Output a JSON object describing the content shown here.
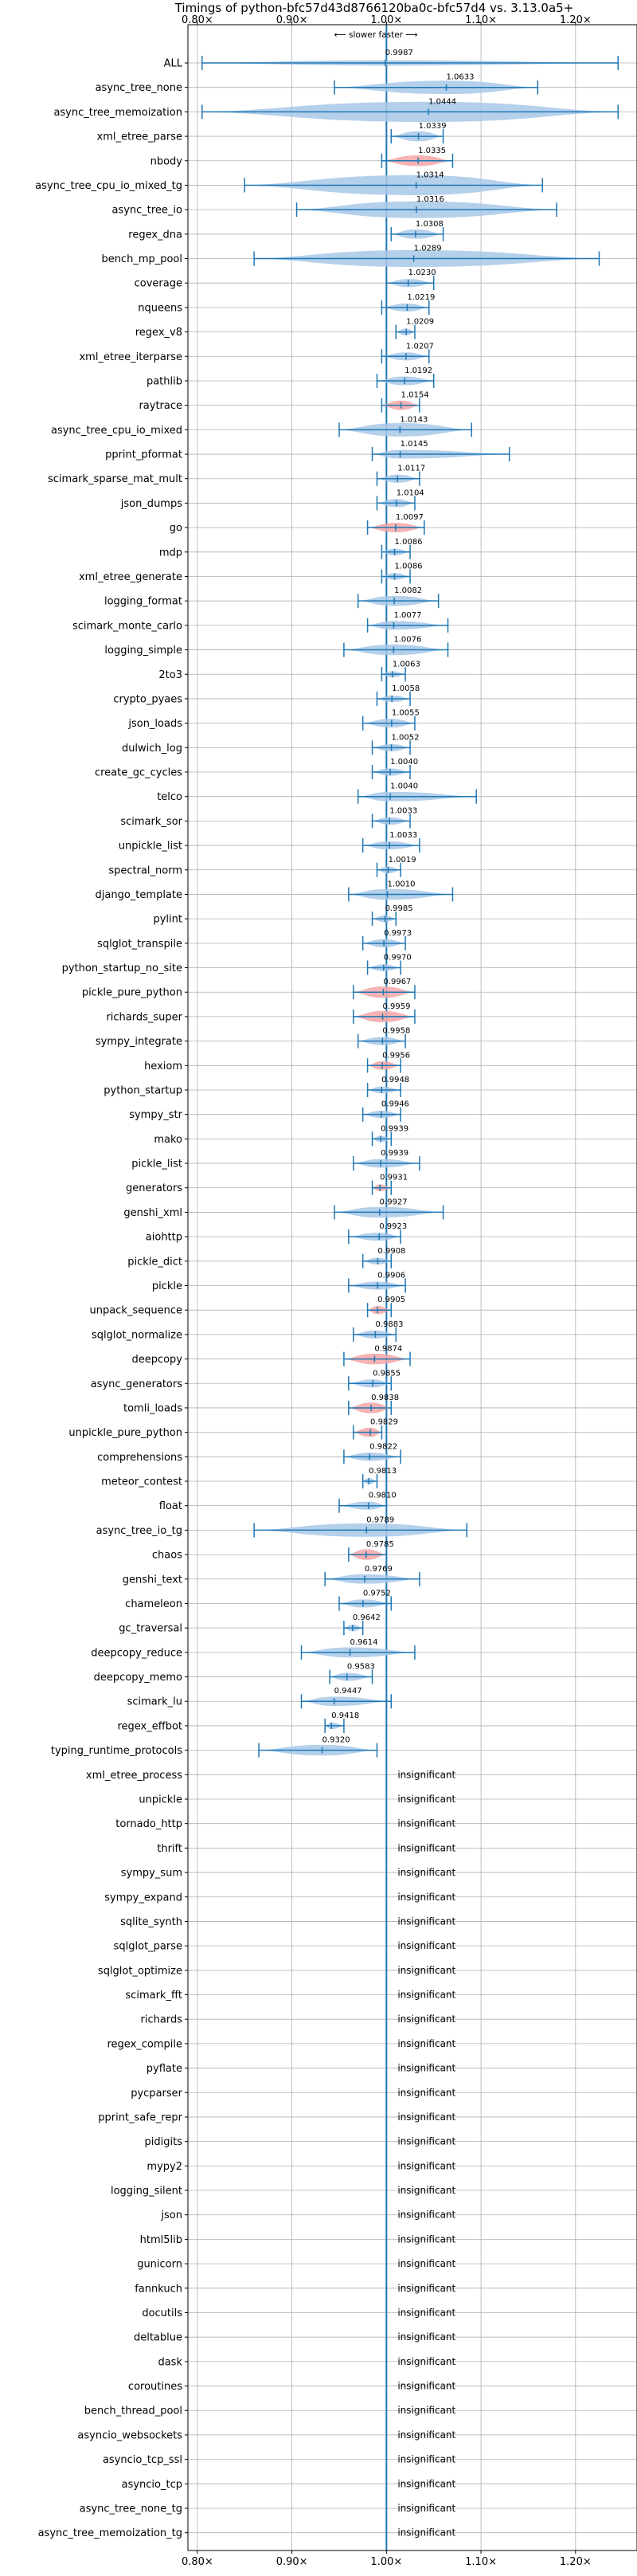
{
  "chart_data": {
    "type": "violin",
    "title": "Timings of python-bfc57d43d8766120ba0c-bfc57d4 vs. 3.13.0a5+",
    "direction_label": "⟵ slower    faster ⟶",
    "x_ticks": [
      0.8,
      0.9,
      1.0,
      1.1,
      1.2
    ],
    "x_tick_labels": [
      "0.80×",
      "0.90×",
      "1.00×",
      "1.10×",
      "1.20×"
    ],
    "xlim": [
      0.79,
      1.265
    ],
    "reference_line": 1.0,
    "insignificant_label": "insignificant",
    "colors": {
      "normal": "#a8c8e8",
      "highlight": "#f4a6a6",
      "whisker": "#1f77b4",
      "grid": "#b0b0b0"
    },
    "benchmarks": [
      {
        "name": "ALL",
        "value": 0.9987,
        "label": "0.9987",
        "min": 0.805,
        "max": 1.245,
        "width": 0.8,
        "hl": false
      },
      {
        "name": "async_tree_none",
        "value": 1.0633,
        "label": "1.0633",
        "min": 0.945,
        "max": 1.16,
        "width": 2.0,
        "hl": false
      },
      {
        "name": "async_tree_memoization",
        "value": 1.0444,
        "label": "1.0444",
        "min": 0.805,
        "max": 1.245,
        "width": 3.0,
        "hl": false
      },
      {
        "name": "xml_etree_parse",
        "value": 1.0339,
        "label": "1.0339",
        "min": 1.005,
        "max": 1.06,
        "width": 1.5,
        "hl": false
      },
      {
        "name": "nbody",
        "value": 1.0335,
        "label": "1.0335",
        "min": 0.995,
        "max": 1.07,
        "width": 1.6,
        "hl": true
      },
      {
        "name": "async_tree_cpu_io_mixed_tg",
        "value": 1.0314,
        "label": "1.0314",
        "min": 0.85,
        "max": 1.165,
        "width": 3.0,
        "hl": false
      },
      {
        "name": "async_tree_io",
        "value": 1.0316,
        "label": "1.0316",
        "min": 0.905,
        "max": 1.18,
        "width": 2.5,
        "hl": false
      },
      {
        "name": "regex_dna",
        "value": 1.0308,
        "label": "1.0308",
        "min": 1.005,
        "max": 1.06,
        "width": 1.4,
        "hl": false
      },
      {
        "name": "bench_mp_pool",
        "value": 1.0289,
        "label": "1.0289",
        "min": 0.86,
        "max": 1.225,
        "width": 2.5,
        "hl": false
      },
      {
        "name": "coverage",
        "value": 1.023,
        "label": "1.0230",
        "min": 1.0,
        "max": 1.05,
        "width": 1.2,
        "hl": false
      },
      {
        "name": "nqueens",
        "value": 1.0219,
        "label": "1.0219",
        "min": 0.995,
        "max": 1.045,
        "width": 1.2,
        "hl": false
      },
      {
        "name": "regex_v8",
        "value": 1.0209,
        "label": "1.0209",
        "min": 1.01,
        "max": 1.03,
        "width": 1.0,
        "hl": false
      },
      {
        "name": "xml_etree_iterparse",
        "value": 1.0207,
        "label": "1.0207",
        "min": 0.995,
        "max": 1.045,
        "width": 1.2,
        "hl": false
      },
      {
        "name": "pathlib",
        "value": 1.0192,
        "label": "1.0192",
        "min": 0.99,
        "max": 1.05,
        "width": 1.3,
        "hl": false
      },
      {
        "name": "raytrace",
        "value": 1.0154,
        "label": "1.0154",
        "min": 0.995,
        "max": 1.035,
        "width": 1.4,
        "hl": true
      },
      {
        "name": "async_tree_cpu_io_mixed",
        "value": 1.0143,
        "label": "1.0143",
        "min": 0.95,
        "max": 1.09,
        "width": 2.0,
        "hl": false
      },
      {
        "name": "pprint_pformat",
        "value": 1.0145,
        "label": "1.0145",
        "min": 0.985,
        "max": 1.13,
        "width": 1.3,
        "hl": false
      },
      {
        "name": "scimark_sparse_mat_mult",
        "value": 1.0117,
        "label": "1.0117",
        "min": 0.99,
        "max": 1.035,
        "width": 1.2,
        "hl": false
      },
      {
        "name": "json_dumps",
        "value": 1.0104,
        "label": "1.0104",
        "min": 0.99,
        "max": 1.03,
        "width": 1.2,
        "hl": false
      },
      {
        "name": "go",
        "value": 1.0097,
        "label": "1.0097",
        "min": 0.98,
        "max": 1.04,
        "width": 1.4,
        "hl": true
      },
      {
        "name": "mdp",
        "value": 1.0086,
        "label": "1.0086",
        "min": 0.995,
        "max": 1.025,
        "width": 1.0,
        "hl": false
      },
      {
        "name": "xml_etree_generate",
        "value": 1.0086,
        "label": "1.0086",
        "min": 0.995,
        "max": 1.025,
        "width": 1.0,
        "hl": false
      },
      {
        "name": "logging_format",
        "value": 1.0082,
        "label": "1.0082",
        "min": 0.97,
        "max": 1.055,
        "width": 1.5,
        "hl": false
      },
      {
        "name": "scimark_monte_carlo",
        "value": 1.0077,
        "label": "1.0077",
        "min": 0.98,
        "max": 1.065,
        "width": 1.3,
        "hl": false
      },
      {
        "name": "logging_simple",
        "value": 1.0076,
        "label": "1.0076",
        "min": 0.955,
        "max": 1.065,
        "width": 1.6,
        "hl": false
      },
      {
        "name": "2to3",
        "value": 1.0063,
        "label": "1.0063",
        "min": 0.995,
        "max": 1.02,
        "width": 0.9,
        "hl": false
      },
      {
        "name": "crypto_pyaes",
        "value": 1.0058,
        "label": "1.0058",
        "min": 0.99,
        "max": 1.025,
        "width": 1.0,
        "hl": false
      },
      {
        "name": "json_loads",
        "value": 1.0055,
        "label": "1.0055",
        "min": 0.975,
        "max": 1.03,
        "width": 1.3,
        "hl": false
      },
      {
        "name": "dulwich_log",
        "value": 1.0052,
        "label": "1.0052",
        "min": 0.985,
        "max": 1.025,
        "width": 1.1,
        "hl": false
      },
      {
        "name": "create_gc_cycles",
        "value": 1.004,
        "label": "1.0040",
        "min": 0.985,
        "max": 1.025,
        "width": 1.1,
        "hl": false
      },
      {
        "name": "telco",
        "value": 1.004,
        "label": "1.0040",
        "min": 0.97,
        "max": 1.095,
        "width": 1.4,
        "hl": false
      },
      {
        "name": "scimark_sor",
        "value": 1.0033,
        "label": "1.0033",
        "min": 0.985,
        "max": 1.025,
        "width": 1.1,
        "hl": false
      },
      {
        "name": "unpickle_list",
        "value": 1.0033,
        "label": "1.0033",
        "min": 0.975,
        "max": 1.035,
        "width": 1.2,
        "hl": false
      },
      {
        "name": "spectral_norm",
        "value": 1.0019,
        "label": "1.0019",
        "min": 0.99,
        "max": 1.015,
        "width": 1.0,
        "hl": false
      },
      {
        "name": "django_template",
        "value": 1.001,
        "label": "1.0010",
        "min": 0.96,
        "max": 1.07,
        "width": 1.6,
        "hl": false
      },
      {
        "name": "pylint",
        "value": 0.9985,
        "label": "0.9985",
        "min": 0.985,
        "max": 1.01,
        "width": 1.0,
        "hl": false
      },
      {
        "name": "sqlglot_transpile",
        "value": 0.9973,
        "label": "0.9973",
        "min": 0.975,
        "max": 1.02,
        "width": 1.2,
        "hl": false
      },
      {
        "name": "python_startup_no_site",
        "value": 0.997,
        "label": "0.9970",
        "min": 0.98,
        "max": 1.015,
        "width": 1.0,
        "hl": false
      },
      {
        "name": "pickle_pure_python",
        "value": 0.9967,
        "label": "0.9967",
        "min": 0.965,
        "max": 1.03,
        "width": 1.7,
        "hl": true
      },
      {
        "name": "richards_super",
        "value": 0.9959,
        "label": "0.9959",
        "min": 0.965,
        "max": 1.03,
        "width": 1.7,
        "hl": true
      },
      {
        "name": "sympy_integrate",
        "value": 0.9958,
        "label": "0.9958",
        "min": 0.97,
        "max": 1.02,
        "width": 1.2,
        "hl": false
      },
      {
        "name": "hexiom",
        "value": 0.9956,
        "label": "0.9956",
        "min": 0.98,
        "max": 1.015,
        "width": 1.3,
        "hl": true
      },
      {
        "name": "python_startup",
        "value": 0.9948,
        "label": "0.9948",
        "min": 0.98,
        "max": 1.015,
        "width": 1.0,
        "hl": false
      },
      {
        "name": "sympy_str",
        "value": 0.9946,
        "label": "0.9946",
        "min": 0.975,
        "max": 1.015,
        "width": 1.1,
        "hl": false
      },
      {
        "name": "mako",
        "value": 0.9939,
        "label": "0.9939",
        "min": 0.985,
        "max": 1.005,
        "width": 0.9,
        "hl": false
      },
      {
        "name": "pickle_list",
        "value": 0.9939,
        "label": "0.9939",
        "min": 0.965,
        "max": 1.035,
        "width": 1.3,
        "hl": false
      },
      {
        "name": "generators",
        "value": 0.9931,
        "label": "0.9931",
        "min": 0.985,
        "max": 1.005,
        "width": 1.0,
        "hl": true
      },
      {
        "name": "genshi_xml",
        "value": 0.9927,
        "label": "0.9927",
        "min": 0.945,
        "max": 1.06,
        "width": 1.6,
        "hl": false
      },
      {
        "name": "aiohttp",
        "value": 0.9923,
        "label": "0.9923",
        "min": 0.96,
        "max": 1.015,
        "width": 1.2,
        "hl": false
      },
      {
        "name": "pickle_dict",
        "value": 0.9908,
        "label": "0.9908",
        "min": 0.975,
        "max": 1.005,
        "width": 1.0,
        "hl": false
      },
      {
        "name": "pickle",
        "value": 0.9906,
        "label": "0.9906",
        "min": 0.96,
        "max": 1.02,
        "width": 1.2,
        "hl": false
      },
      {
        "name": "unpack_sequence",
        "value": 0.9905,
        "label": "0.9905",
        "min": 0.98,
        "max": 1.005,
        "width": 1.2,
        "hl": true
      },
      {
        "name": "sqlglot_normalize",
        "value": 0.9883,
        "label": "0.9883",
        "min": 0.965,
        "max": 1.01,
        "width": 1.2,
        "hl": false
      },
      {
        "name": "deepcopy",
        "value": 0.9874,
        "label": "0.9874",
        "min": 0.955,
        "max": 1.025,
        "width": 1.6,
        "hl": true
      },
      {
        "name": "async_generators",
        "value": 0.9855,
        "label": "0.9855",
        "min": 0.96,
        "max": 1.005,
        "width": 1.2,
        "hl": false
      },
      {
        "name": "tomli_loads",
        "value": 0.9838,
        "label": "0.9838",
        "min": 0.96,
        "max": 1.005,
        "width": 1.6,
        "hl": true
      },
      {
        "name": "unpickle_pure_python",
        "value": 0.9829,
        "label": "0.9829",
        "min": 0.965,
        "max": 0.995,
        "width": 1.4,
        "hl": true
      },
      {
        "name": "comprehensions",
        "value": 0.9822,
        "label": "0.9822",
        "min": 0.955,
        "max": 1.015,
        "width": 1.2,
        "hl": false
      },
      {
        "name": "meteor_contest",
        "value": 0.9813,
        "label": "0.9813",
        "min": 0.975,
        "max": 0.99,
        "width": 0.9,
        "hl": false
      },
      {
        "name": "float",
        "value": 0.981,
        "label": "0.9810",
        "min": 0.95,
        "max": 1.0,
        "width": 1.2,
        "hl": false
      },
      {
        "name": "async_tree_io_tg",
        "value": 0.9789,
        "label": "0.9789",
        "min": 0.86,
        "max": 1.085,
        "width": 2.0,
        "hl": false
      },
      {
        "name": "chaos",
        "value": 0.9785,
        "label": "0.9785",
        "min": 0.96,
        "max": 1.0,
        "width": 1.6,
        "hl": true
      },
      {
        "name": "genshi_text",
        "value": 0.9769,
        "label": "0.9769",
        "min": 0.935,
        "max": 1.035,
        "width": 1.4,
        "hl": false
      },
      {
        "name": "chameleon",
        "value": 0.9752,
        "label": "0.9752",
        "min": 0.95,
        "max": 1.005,
        "width": 1.2,
        "hl": false
      },
      {
        "name": "gc_traversal",
        "value": 0.9642,
        "label": "0.9642",
        "min": 0.955,
        "max": 0.975,
        "width": 1.0,
        "hl": false
      },
      {
        "name": "deepcopy_reduce",
        "value": 0.9614,
        "label": "0.9614",
        "min": 0.91,
        "max": 1.03,
        "width": 1.5,
        "hl": false
      },
      {
        "name": "deepcopy_memo",
        "value": 0.9583,
        "label": "0.9583",
        "min": 0.94,
        "max": 0.985,
        "width": 1.2,
        "hl": false
      },
      {
        "name": "scimark_lu",
        "value": 0.9447,
        "label": "0.9447",
        "min": 0.91,
        "max": 1.005,
        "width": 1.4,
        "hl": false
      },
      {
        "name": "regex_effbot",
        "value": 0.9418,
        "label": "0.9418",
        "min": 0.935,
        "max": 0.955,
        "width": 1.0,
        "hl": false
      },
      {
        "name": "typing_runtime_protocols",
        "value": 0.932,
        "label": "0.9320",
        "min": 0.865,
        "max": 0.99,
        "width": 1.6,
        "hl": false
      },
      {
        "name": "xml_etree_process",
        "insignificant": true
      },
      {
        "name": "unpickle",
        "insignificant": true
      },
      {
        "name": "tornado_http",
        "insignificant": true
      },
      {
        "name": "thrift",
        "insignificant": true
      },
      {
        "name": "sympy_sum",
        "insignificant": true
      },
      {
        "name": "sympy_expand",
        "insignificant": true
      },
      {
        "name": "sqlite_synth",
        "insignificant": true
      },
      {
        "name": "sqlglot_parse",
        "insignificant": true
      },
      {
        "name": "sqlglot_optimize",
        "insignificant": true
      },
      {
        "name": "scimark_fft",
        "insignificant": true
      },
      {
        "name": "richards",
        "insignificant": true
      },
      {
        "name": "regex_compile",
        "insignificant": true
      },
      {
        "name": "pyflate",
        "insignificant": true
      },
      {
        "name": "pycparser",
        "insignificant": true
      },
      {
        "name": "pprint_safe_repr",
        "insignificant": true
      },
      {
        "name": "pidigits",
        "insignificant": true
      },
      {
        "name": "mypy2",
        "insignificant": true
      },
      {
        "name": "logging_silent",
        "insignificant": true
      },
      {
        "name": "json",
        "insignificant": true
      },
      {
        "name": "html5lib",
        "insignificant": true
      },
      {
        "name": "gunicorn",
        "insignificant": true
      },
      {
        "name": "fannkuch",
        "insignificant": true
      },
      {
        "name": "docutils",
        "insignificant": true
      },
      {
        "name": "deltablue",
        "insignificant": true
      },
      {
        "name": "dask",
        "insignificant": true
      },
      {
        "name": "coroutines",
        "insignificant": true
      },
      {
        "name": "bench_thread_pool",
        "insignificant": true
      },
      {
        "name": "asyncio_websockets",
        "insignificant": true
      },
      {
        "name": "asyncio_tcp_ssl",
        "insignificant": true
      },
      {
        "name": "asyncio_tcp",
        "insignificant": true
      },
      {
        "name": "async_tree_none_tg",
        "insignificant": true
      },
      {
        "name": "async_tree_memoization_tg",
        "insignificant": true
      }
    ]
  }
}
